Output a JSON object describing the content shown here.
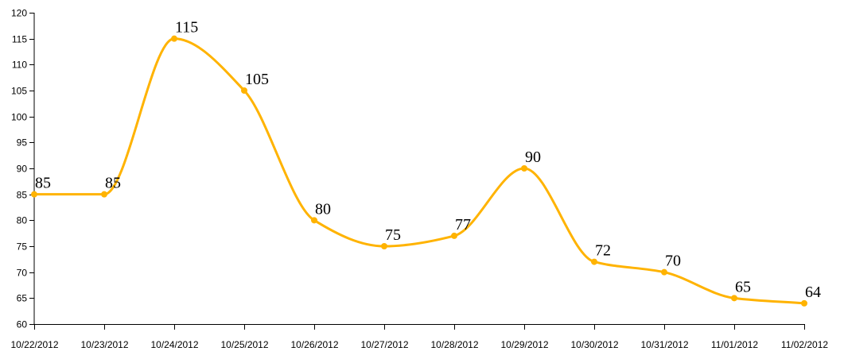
{
  "chart_data": {
    "type": "line",
    "title": "",
    "xlabel": "",
    "ylabel": "",
    "categories": [
      "10/22/2012",
      "10/23/2012",
      "10/24/2012",
      "10/25/2012",
      "10/26/2012",
      "10/27/2012",
      "10/28/2012",
      "10/29/2012",
      "10/30/2012",
      "10/31/2012",
      "11/01/2012",
      "11/02/2012"
    ],
    "series": [
      {
        "values": [
          85,
          85,
          115,
          105,
          80,
          75,
          77,
          90,
          72,
          70,
          65,
          64
        ],
        "color": "#FFB300"
      }
    ],
    "ylim": [
      60,
      120
    ],
    "yticks": [
      60,
      65,
      70,
      75,
      80,
      85,
      90,
      95,
      100,
      105,
      110,
      115,
      120
    ],
    "grid": false,
    "legend": "none",
    "data_labels": true,
    "curve": "monotone"
  }
}
